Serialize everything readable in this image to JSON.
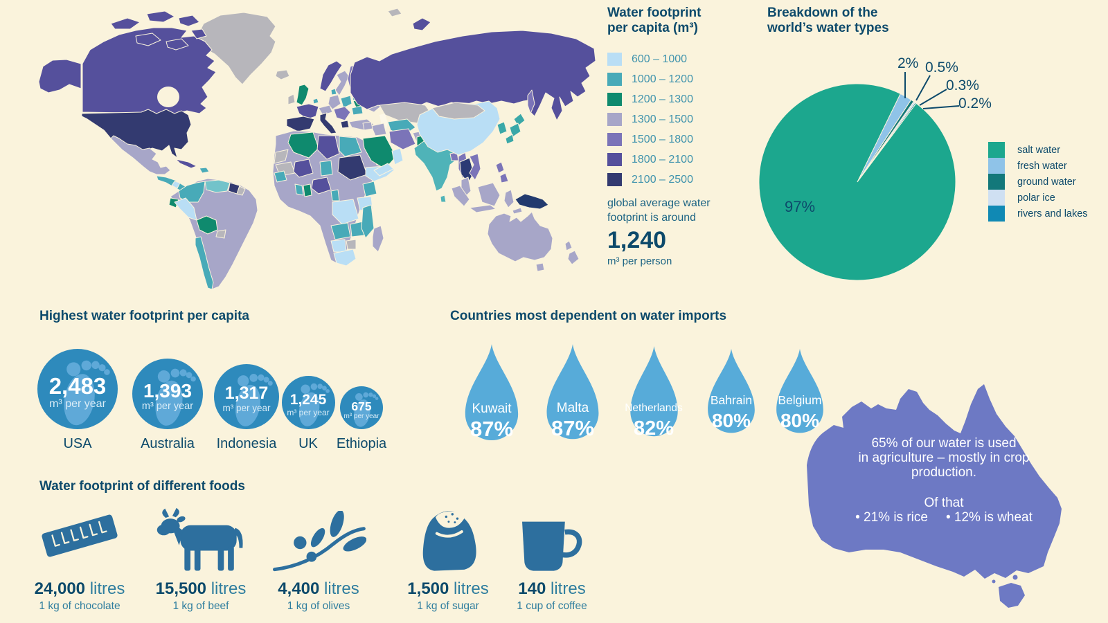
{
  "colors": {
    "background": "#faf3dc",
    "heading_blue": "#0d4a6b",
    "teal_text": "#3f93ad",
    "footprint_circle": "#2e8abc",
    "footprint_glyph": "#5fa9d8",
    "drop_blue": "#57abd9",
    "australia_fill": "#6d79c4",
    "food_icon_blue": "#2d6f9e",
    "no_data_gray": "#b7b6bb"
  },
  "map_legend": {
    "title_line1": "Water footprint",
    "title_line2": "per capita (m³)",
    "items": [
      {
        "range": "600 – 1000",
        "color": "#b9def5"
      },
      {
        "range": "1000 – 1200",
        "color": "#48aab8"
      },
      {
        "range": "1200 – 1300",
        "color": "#0f8a6e"
      },
      {
        "range": "1300 – 1500",
        "color": "#a7a6c8"
      },
      {
        "range": "1500 – 1800",
        "color": "#7b74b8"
      },
      {
        "range": "1800 – 2100",
        "color": "#55509c"
      },
      {
        "range": "2100 – 2500",
        "color": "#333a70"
      }
    ],
    "note_line1": "global average water",
    "note_line2": "footprint is around",
    "average_value": "1,240",
    "average_unit": "m³ per person"
  },
  "pie_section": {
    "title_line1": "Breakdown of the",
    "title_line2": "world’s water types",
    "inside_label": "97%",
    "callouts": [
      "2%",
      "0.5%",
      "0.3%",
      "0.2%"
    ],
    "legend": [
      {
        "label": "salt water",
        "color": "#1ca78e"
      },
      {
        "label": "fresh water",
        "color": "#8fc3e8"
      },
      {
        "label": "ground water",
        "color": "#13787a"
      },
      {
        "label": "polar ice",
        "color": "#cfe0f2"
      },
      {
        "label": "rivers and lakes",
        "color": "#1089b4"
      }
    ]
  },
  "footprints": {
    "heading": "Highest water footprint per capita",
    "unit": "m³ per year",
    "items": [
      {
        "country": "USA",
        "value": "2,483"
      },
      {
        "country": "Australia",
        "value": "1,393"
      },
      {
        "country": "Indonesia",
        "value": "1,317"
      },
      {
        "country": "UK",
        "value": "1,245"
      },
      {
        "country": "Ethiopia",
        "value": "675"
      }
    ]
  },
  "imports": {
    "heading": "Countries most dependent on water imports",
    "items": [
      {
        "country": "Kuwait",
        "pct": "87%"
      },
      {
        "country": "Malta",
        "pct": "87%"
      },
      {
        "country": "Netherlands",
        "pct": "82%"
      },
      {
        "country": "Bahrain",
        "pct": "80%"
      },
      {
        "country": "Belgium",
        "pct": "80%"
      }
    ]
  },
  "australia_note": {
    "line1": "65% of our water is used",
    "line2": "in agriculture – mostly in crop",
    "line3": "production.",
    "line4": "Of that",
    "bullet1": "• 21% is rice",
    "bullet2": "• 12% is wheat"
  },
  "foods": {
    "heading": "Water footprint of different foods",
    "items": [
      {
        "icon": "chocolate-bar",
        "value": "24,000",
        "unit": "litres",
        "desc": "1 kg of chocolate"
      },
      {
        "icon": "cow",
        "value": "15,500",
        "unit": "litres",
        "desc": "1 kg of beef"
      },
      {
        "icon": "olive-branch",
        "value": "4,400",
        "unit": "litres",
        "desc": "1 kg of olives"
      },
      {
        "icon": "sugar-sack",
        "value": "1,500",
        "unit": "litres",
        "desc": "1 kg of sugar"
      },
      {
        "icon": "coffee-mug",
        "value": "140",
        "unit": "litres",
        "desc": "1 cup of coffee"
      }
    ]
  },
  "chart_data": [
    {
      "type": "pie",
      "title": "Breakdown of the world's water types",
      "labels": [
        "salt water",
        "fresh water",
        "ground water",
        "polar ice",
        "rivers and lakes"
      ],
      "values": [
        97,
        2,
        0.5,
        0.3,
        0.2
      ],
      "unit": "%",
      "colors": [
        "#1ca78e",
        "#8fc3e8",
        "#13787a",
        "#cfe0f2",
        "#1089b4"
      ],
      "legend_position": "right",
      "annotations": [
        "97% labeled inside slice",
        "2%, 0.5%, 0.3%, 0.2% labeled with leader lines"
      ]
    },
    {
      "type": "heatmap",
      "subtype": "choropleth-world-map",
      "title": "Water footprint per capita (m³)",
      "bins": [
        "600 – 1000",
        "1000 – 1200",
        "1200 – 1300",
        "1300 – 1500",
        "1500 – 1800",
        "1800 – 2100",
        "2100 – 2500"
      ],
      "bin_colors": [
        "#b9def5",
        "#48aab8",
        "#0f8a6e",
        "#a7a6c8",
        "#7b74b8",
        "#55509c",
        "#333a70"
      ],
      "note": "global average water footprint is around 1,240 m³ per person"
    },
    {
      "type": "bar",
      "subtype": "proportional-circles",
      "title": "Highest water footprint per capita",
      "categories": [
        "USA",
        "Australia",
        "Indonesia",
        "UK",
        "Ethiopia"
      ],
      "values": [
        2483,
        1393,
        1317,
        1245,
        675
      ],
      "ylabel": "m³ per year"
    },
    {
      "type": "bar",
      "subtype": "pictogram-water-drops",
      "title": "Countries most dependent on water imports",
      "categories": [
        "Kuwait",
        "Malta",
        "Netherlands",
        "Bahrain",
        "Belgium"
      ],
      "values": [
        87,
        87,
        82,
        80,
        80
      ],
      "unit": "%"
    },
    {
      "type": "bar",
      "subtype": "pictogram-foods",
      "title": "Water footprint of different foods",
      "categories": [
        "1 kg of chocolate",
        "1 kg of beef",
        "1 kg of olives",
        "1 kg of sugar",
        "1 cup of coffee"
      ],
      "values": [
        24000,
        15500,
        4400,
        1500,
        140
      ],
      "unit": "litres"
    },
    {
      "type": "table",
      "subtype": "annotation-australia",
      "title": "Australia water use note",
      "rows": [
        [
          "agriculture share",
          "65%"
        ],
        [
          "rice share of that",
          "21%"
        ],
        [
          "wheat share of that",
          "12%"
        ]
      ]
    }
  ]
}
